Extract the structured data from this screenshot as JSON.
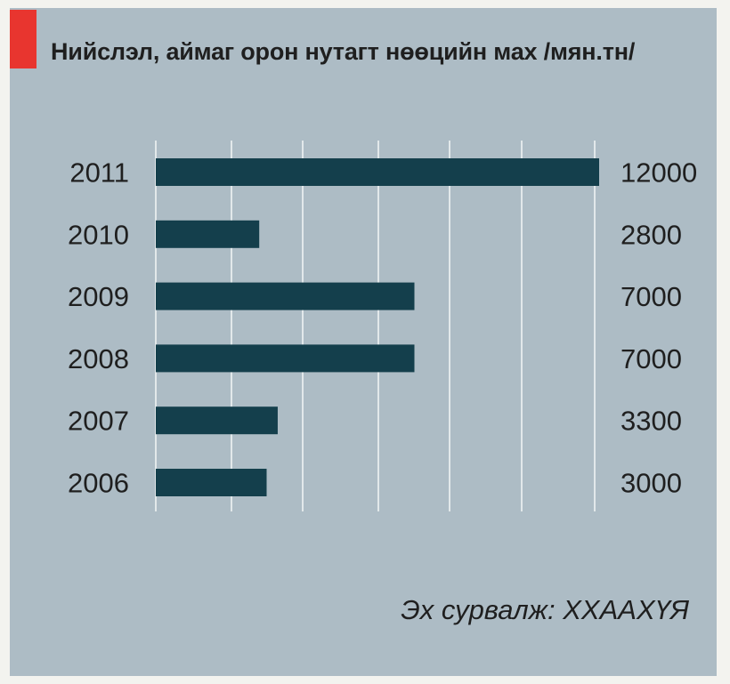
{
  "title": "Нийслэл, аймаг орон нутагт нөөцийн мах /мян.тн/",
  "source": "Эх сурвалж: ХХААХҮЯ",
  "colors": {
    "panel_background": "#adbcc5",
    "bar": "#143f4c",
    "gridline": "#ffffff",
    "accent": "#e8352f",
    "text": "#1f1f1f"
  },
  "chart_data": {
    "type": "bar",
    "orientation": "horizontal",
    "categories": [
      "2011",
      "2010",
      "2009",
      "2008",
      "2007",
      "2006"
    ],
    "values": [
      12000,
      2800,
      7000,
      7000,
      3300,
      3000
    ],
    "value_labels": [
      "12000",
      "2800",
      "7000",
      "7000",
      "3300",
      "3000"
    ],
    "title": "Нийслэл, аймаг орон нутагт нөөцийн мах /мян.тн/",
    "xlabel": "",
    "ylabel": "",
    "grid": true,
    "legend": "none"
  }
}
